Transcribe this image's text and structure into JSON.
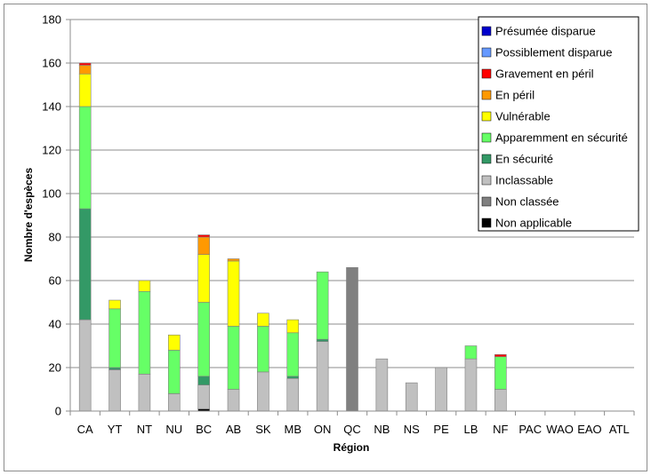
{
  "chart_data": {
    "type": "bar",
    "stacked": true,
    "title": "",
    "xlabel": "Région",
    "ylabel": "Nombre d'espèces",
    "ylim": [
      0,
      180
    ],
    "yticks": [
      0,
      20,
      40,
      60,
      80,
      100,
      120,
      140,
      160,
      180
    ],
    "grid": true,
    "legend_position": "top-right",
    "categories": [
      "CA",
      "YT",
      "NT",
      "NU",
      "BC",
      "AB",
      "SK",
      "MB",
      "ON",
      "QC",
      "NB",
      "NS",
      "PE",
      "LB",
      "NF",
      "PAC",
      "WAO",
      "EAO",
      "ATL"
    ],
    "series": [
      {
        "name": "Non applicable",
        "color": "#000000",
        "values": [
          0,
          0,
          0,
          0,
          1,
          0,
          0,
          0,
          0,
          0,
          0,
          0,
          0,
          0,
          0,
          0,
          0,
          0,
          0
        ]
      },
      {
        "name": "Non classée",
        "color": "#808080",
        "values": [
          0,
          0,
          0,
          0,
          0,
          0,
          0,
          0,
          0,
          66,
          0,
          0,
          0,
          0,
          0,
          0,
          0,
          0,
          0
        ]
      },
      {
        "name": "Inclassable",
        "color": "#c0c0c0",
        "values": [
          42,
          19,
          17,
          8,
          11,
          10,
          18,
          15,
          32,
          0,
          24,
          13,
          20,
          24,
          10,
          0,
          0,
          0,
          0
        ]
      },
      {
        "name": "En sécurité",
        "color": "#339966",
        "values": [
          51,
          1,
          0,
          0,
          4,
          0,
          0,
          1,
          1,
          0,
          0,
          0,
          0,
          0,
          0,
          0,
          0,
          0,
          0
        ]
      },
      {
        "name": "Apparemment en sécurité",
        "color": "#66ff66",
        "values": [
          47,
          27,
          38,
          20,
          34,
          29,
          21,
          20,
          31,
          0,
          0,
          0,
          0,
          6,
          15,
          0,
          0,
          0,
          0
        ]
      },
      {
        "name": "Vulnérable",
        "color": "#ffff00",
        "values": [
          15,
          4,
          5,
          7,
          22,
          30,
          6,
          6,
          0,
          0,
          0,
          0,
          0,
          0,
          0,
          0,
          0,
          0,
          0
        ]
      },
      {
        "name": "En péril",
        "color": "#ff9900",
        "values": [
          4,
          0,
          0,
          0,
          8,
          1,
          0,
          0,
          0,
          0,
          0,
          0,
          0,
          0,
          0,
          0,
          0,
          0,
          0
        ]
      },
      {
        "name": "Gravement en péril",
        "color": "#ff0000",
        "values": [
          1,
          0,
          0,
          0,
          1,
          0,
          0,
          0,
          0,
          0,
          0,
          0,
          0,
          0,
          1,
          0,
          0,
          0,
          0
        ]
      },
      {
        "name": "Possiblement disparue",
        "color": "#6699ff",
        "values": [
          0,
          0,
          0,
          0,
          0,
          0,
          0,
          0,
          0,
          0,
          0,
          0,
          0,
          0,
          0,
          0,
          0,
          0,
          0
        ]
      },
      {
        "name": "Présumée disparue",
        "color": "#0000cc",
        "values": [
          0,
          0,
          0,
          0,
          0,
          0,
          0,
          0,
          0,
          0,
          0,
          0,
          0,
          0,
          0,
          0,
          0,
          0,
          0
        ]
      }
    ],
    "legend_order": [
      "Présumée disparue",
      "Possiblement disparue",
      "Gravement en péril",
      "En péril",
      "Vulnérable",
      "Apparemment en sécurité",
      "En sécurité",
      "Inclassable",
      "Non classée",
      "Non applicable"
    ]
  }
}
